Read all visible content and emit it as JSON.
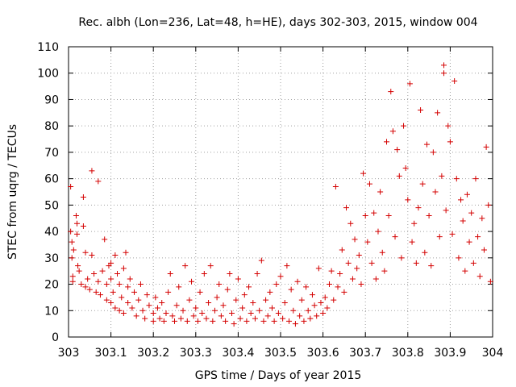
{
  "chart_data": {
    "type": "scatter",
    "title": "Rec. albh (Lon=236, Lat=48, h=HE), days 302-303, 2015, window 004",
    "xlabel": "GPS time / Days of year 2015",
    "ylabel": "STEC from uqrg / TECUs",
    "xlim": [
      303,
      304
    ],
    "ylim": [
      0,
      110
    ],
    "xticks": [
      303,
      303.1,
      303.2,
      303.3,
      303.4,
      303.5,
      303.6,
      303.7,
      303.8,
      303.9,
      304
    ],
    "xtick_labels": [
      "303",
      "303.1",
      "303.2",
      "303.3",
      "303.4",
      "303.5",
      "303.6",
      "303.7",
      "303.8",
      "303.9",
      "304"
    ],
    "yticks": [
      0,
      10,
      20,
      30,
      40,
      50,
      60,
      70,
      80,
      90,
      100,
      110
    ],
    "ytick_labels": [
      "0",
      "10",
      "20",
      "30",
      "40",
      "50",
      "60",
      "70",
      "80",
      "90",
      "100",
      "110"
    ],
    "grid": true,
    "marker": "+",
    "marker_color": "#d40000",
    "series": [
      {
        "name": "STEC",
        "points": [
          [
            303.005,
            57
          ],
          [
            303.005,
            40
          ],
          [
            303.008,
            36
          ],
          [
            303.008,
            30
          ],
          [
            303.01,
            23
          ],
          [
            303.01,
            21
          ],
          [
            303.012,
            33
          ],
          [
            303.018,
            46
          ],
          [
            303.02,
            43
          ],
          [
            303.02,
            39
          ],
          [
            303.022,
            27
          ],
          [
            303.025,
            25
          ],
          [
            303.03,
            20
          ],
          [
            303.035,
            53
          ],
          [
            303.035,
            42
          ],
          [
            303.04,
            32
          ],
          [
            303.04,
            19
          ],
          [
            303.045,
            22
          ],
          [
            303.05,
            18
          ],
          [
            303.055,
            63
          ],
          [
            303.055,
            31
          ],
          [
            303.06,
            24
          ],
          [
            303.065,
            17
          ],
          [
            303.07,
            59
          ],
          [
            303.07,
            21
          ],
          [
            303.075,
            16
          ],
          [
            303.08,
            25
          ],
          [
            303.085,
            37
          ],
          [
            303.09,
            20
          ],
          [
            303.09,
            14
          ],
          [
            303.095,
            27
          ],
          [
            303.1,
            28
          ],
          [
            303.1,
            22
          ],
          [
            303.1,
            13
          ],
          [
            303.105,
            17
          ],
          [
            303.11,
            31
          ],
          [
            303.11,
            11
          ],
          [
            303.115,
            24
          ],
          [
            303.12,
            20
          ],
          [
            303.12,
            10
          ],
          [
            303.125,
            15
          ],
          [
            303.13,
            26
          ],
          [
            303.13,
            9
          ],
          [
            303.135,
            32
          ],
          [
            303.14,
            19
          ],
          [
            303.14,
            13
          ],
          [
            303.145,
            22
          ],
          [
            303.15,
            11
          ],
          [
            303.155,
            17
          ],
          [
            303.16,
            8
          ],
          [
            303.165,
            14
          ],
          [
            303.17,
            20
          ],
          [
            303.175,
            10
          ],
          [
            303.18,
            7
          ],
          [
            303.185,
            16
          ],
          [
            303.19,
            12
          ],
          [
            303.2,
            9
          ],
          [
            303.2,
            6
          ],
          [
            303.205,
            15
          ],
          [
            303.21,
            11
          ],
          [
            303.215,
            7
          ],
          [
            303.22,
            13
          ],
          [
            303.225,
            6
          ],
          [
            303.23,
            9
          ],
          [
            303.235,
            17
          ],
          [
            303.24,
            24
          ],
          [
            303.245,
            8
          ],
          [
            303.25,
            6
          ],
          [
            303.255,
            12
          ],
          [
            303.26,
            19
          ],
          [
            303.265,
            7
          ],
          [
            303.27,
            10
          ],
          [
            303.275,
            27
          ],
          [
            303.28,
            6
          ],
          [
            303.285,
            14
          ],
          [
            303.29,
            21
          ],
          [
            303.295,
            8
          ],
          [
            303.3,
            11
          ],
          [
            303.305,
            6
          ],
          [
            303.31,
            17
          ],
          [
            303.315,
            9
          ],
          [
            303.32,
            24
          ],
          [
            303.325,
            7
          ],
          [
            303.33,
            13
          ],
          [
            303.335,
            27
          ],
          [
            303.34,
            6
          ],
          [
            303.345,
            10
          ],
          [
            303.35,
            15
          ],
          [
            303.355,
            20
          ],
          [
            303.36,
            8
          ],
          [
            303.365,
            12
          ],
          [
            303.37,
            6
          ],
          [
            303.375,
            18
          ],
          [
            303.38,
            24
          ],
          [
            303.385,
            9
          ],
          [
            303.39,
            5
          ],
          [
            303.395,
            14
          ],
          [
            303.4,
            22
          ],
          [
            303.405,
            7
          ],
          [
            303.41,
            11
          ],
          [
            303.415,
            16
          ],
          [
            303.42,
            6
          ],
          [
            303.425,
            19
          ],
          [
            303.43,
            9
          ],
          [
            303.435,
            13
          ],
          [
            303.44,
            7
          ],
          [
            303.445,
            24
          ],
          [
            303.45,
            10
          ],
          [
            303.455,
            29
          ],
          [
            303.46,
            6
          ],
          [
            303.465,
            14
          ],
          [
            303.47,
            8
          ],
          [
            303.475,
            17
          ],
          [
            303.48,
            11
          ],
          [
            303.485,
            6
          ],
          [
            303.49,
            20
          ],
          [
            303.495,
            9
          ],
          [
            303.5,
            23
          ],
          [
            303.505,
            7
          ],
          [
            303.51,
            13
          ],
          [
            303.515,
            27
          ],
          [
            303.52,
            6
          ],
          [
            303.525,
            18
          ],
          [
            303.53,
            10
          ],
          [
            303.535,
            5
          ],
          [
            303.54,
            21
          ],
          [
            303.545,
            8
          ],
          [
            303.55,
            14
          ],
          [
            303.555,
            6
          ],
          [
            303.56,
            19
          ],
          [
            303.565,
            10
          ],
          [
            303.57,
            7
          ],
          [
            303.575,
            16
          ],
          [
            303.58,
            12
          ],
          [
            303.585,
            8
          ],
          [
            303.59,
            26
          ],
          [
            303.595,
            13
          ],
          [
            303.6,
            9
          ],
          [
            303.605,
            15
          ],
          [
            303.61,
            11
          ],
          [
            303.615,
            20
          ],
          [
            303.62,
            25
          ],
          [
            303.625,
            14
          ],
          [
            303.63,
            57
          ],
          [
            303.635,
            19
          ],
          [
            303.64,
            24
          ],
          [
            303.645,
            33
          ],
          [
            303.65,
            17
          ],
          [
            303.655,
            49
          ],
          [
            303.66,
            28
          ],
          [
            303.665,
            43
          ],
          [
            303.67,
            22
          ],
          [
            303.675,
            37
          ],
          [
            303.68,
            26
          ],
          [
            303.685,
            31
          ],
          [
            303.69,
            20
          ],
          [
            303.695,
            62
          ],
          [
            303.7,
            46
          ],
          [
            303.705,
            36
          ],
          [
            303.71,
            58
          ],
          [
            303.715,
            28
          ],
          [
            303.72,
            47
          ],
          [
            303.725,
            22
          ],
          [
            303.73,
            40
          ],
          [
            303.735,
            55
          ],
          [
            303.74,
            32
          ],
          [
            303.745,
            25
          ],
          [
            303.75,
            74
          ],
          [
            303.755,
            46
          ],
          [
            303.76,
            93
          ],
          [
            303.765,
            78
          ],
          [
            303.77,
            38
          ],
          [
            303.775,
            71
          ],
          [
            303.78,
            61
          ],
          [
            303.785,
            30
          ],
          [
            303.79,
            80
          ],
          [
            303.795,
            64
          ],
          [
            303.8,
            52
          ],
          [
            303.805,
            96
          ],
          [
            303.81,
            36
          ],
          [
            303.815,
            43
          ],
          [
            303.82,
            28
          ],
          [
            303.825,
            49
          ],
          [
            303.83,
            86
          ],
          [
            303.835,
            58
          ],
          [
            303.84,
            32
          ],
          [
            303.845,
            73
          ],
          [
            303.85,
            46
          ],
          [
            303.855,
            27
          ],
          [
            303.86,
            70
          ],
          [
            303.865,
            55
          ],
          [
            303.87,
            85
          ],
          [
            303.875,
            38
          ],
          [
            303.88,
            61
          ],
          [
            303.885,
            103
          ],
          [
            303.885,
            100
          ],
          [
            303.89,
            48
          ],
          [
            303.895,
            80
          ],
          [
            303.9,
            74
          ],
          [
            303.905,
            39
          ],
          [
            303.91,
            97
          ],
          [
            303.915,
            60
          ],
          [
            303.92,
            30
          ],
          [
            303.925,
            52
          ],
          [
            303.93,
            44
          ],
          [
            303.935,
            25
          ],
          [
            303.94,
            54
          ],
          [
            303.945,
            36
          ],
          [
            303.95,
            47
          ],
          [
            303.955,
            28
          ],
          [
            303.96,
            60
          ],
          [
            303.965,
            38
          ],
          [
            303.97,
            23
          ],
          [
            303.975,
            45
          ],
          [
            303.98,
            33
          ],
          [
            303.985,
            72
          ],
          [
            303.99,
            50
          ],
          [
            303.995,
            21
          ]
        ]
      }
    ]
  }
}
